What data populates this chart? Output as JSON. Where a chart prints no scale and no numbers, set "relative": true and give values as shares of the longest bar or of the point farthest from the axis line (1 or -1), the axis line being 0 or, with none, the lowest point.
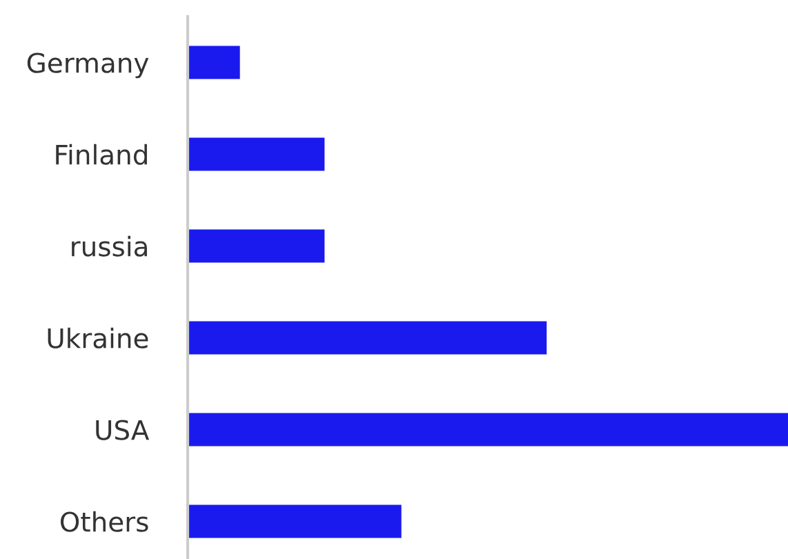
{
  "chart_data": {
    "type": "bar",
    "orientation": "horizontal",
    "relative": true,
    "categories": [
      "Germany",
      "Finland",
      "russia",
      "Ukraine",
      "USA",
      "Others"
    ],
    "values": [
      0.087,
      0.228,
      0.228,
      0.598,
      1,
      0.356
    ],
    "color": "#1a1aee",
    "grid": false,
    "legend": false
  }
}
